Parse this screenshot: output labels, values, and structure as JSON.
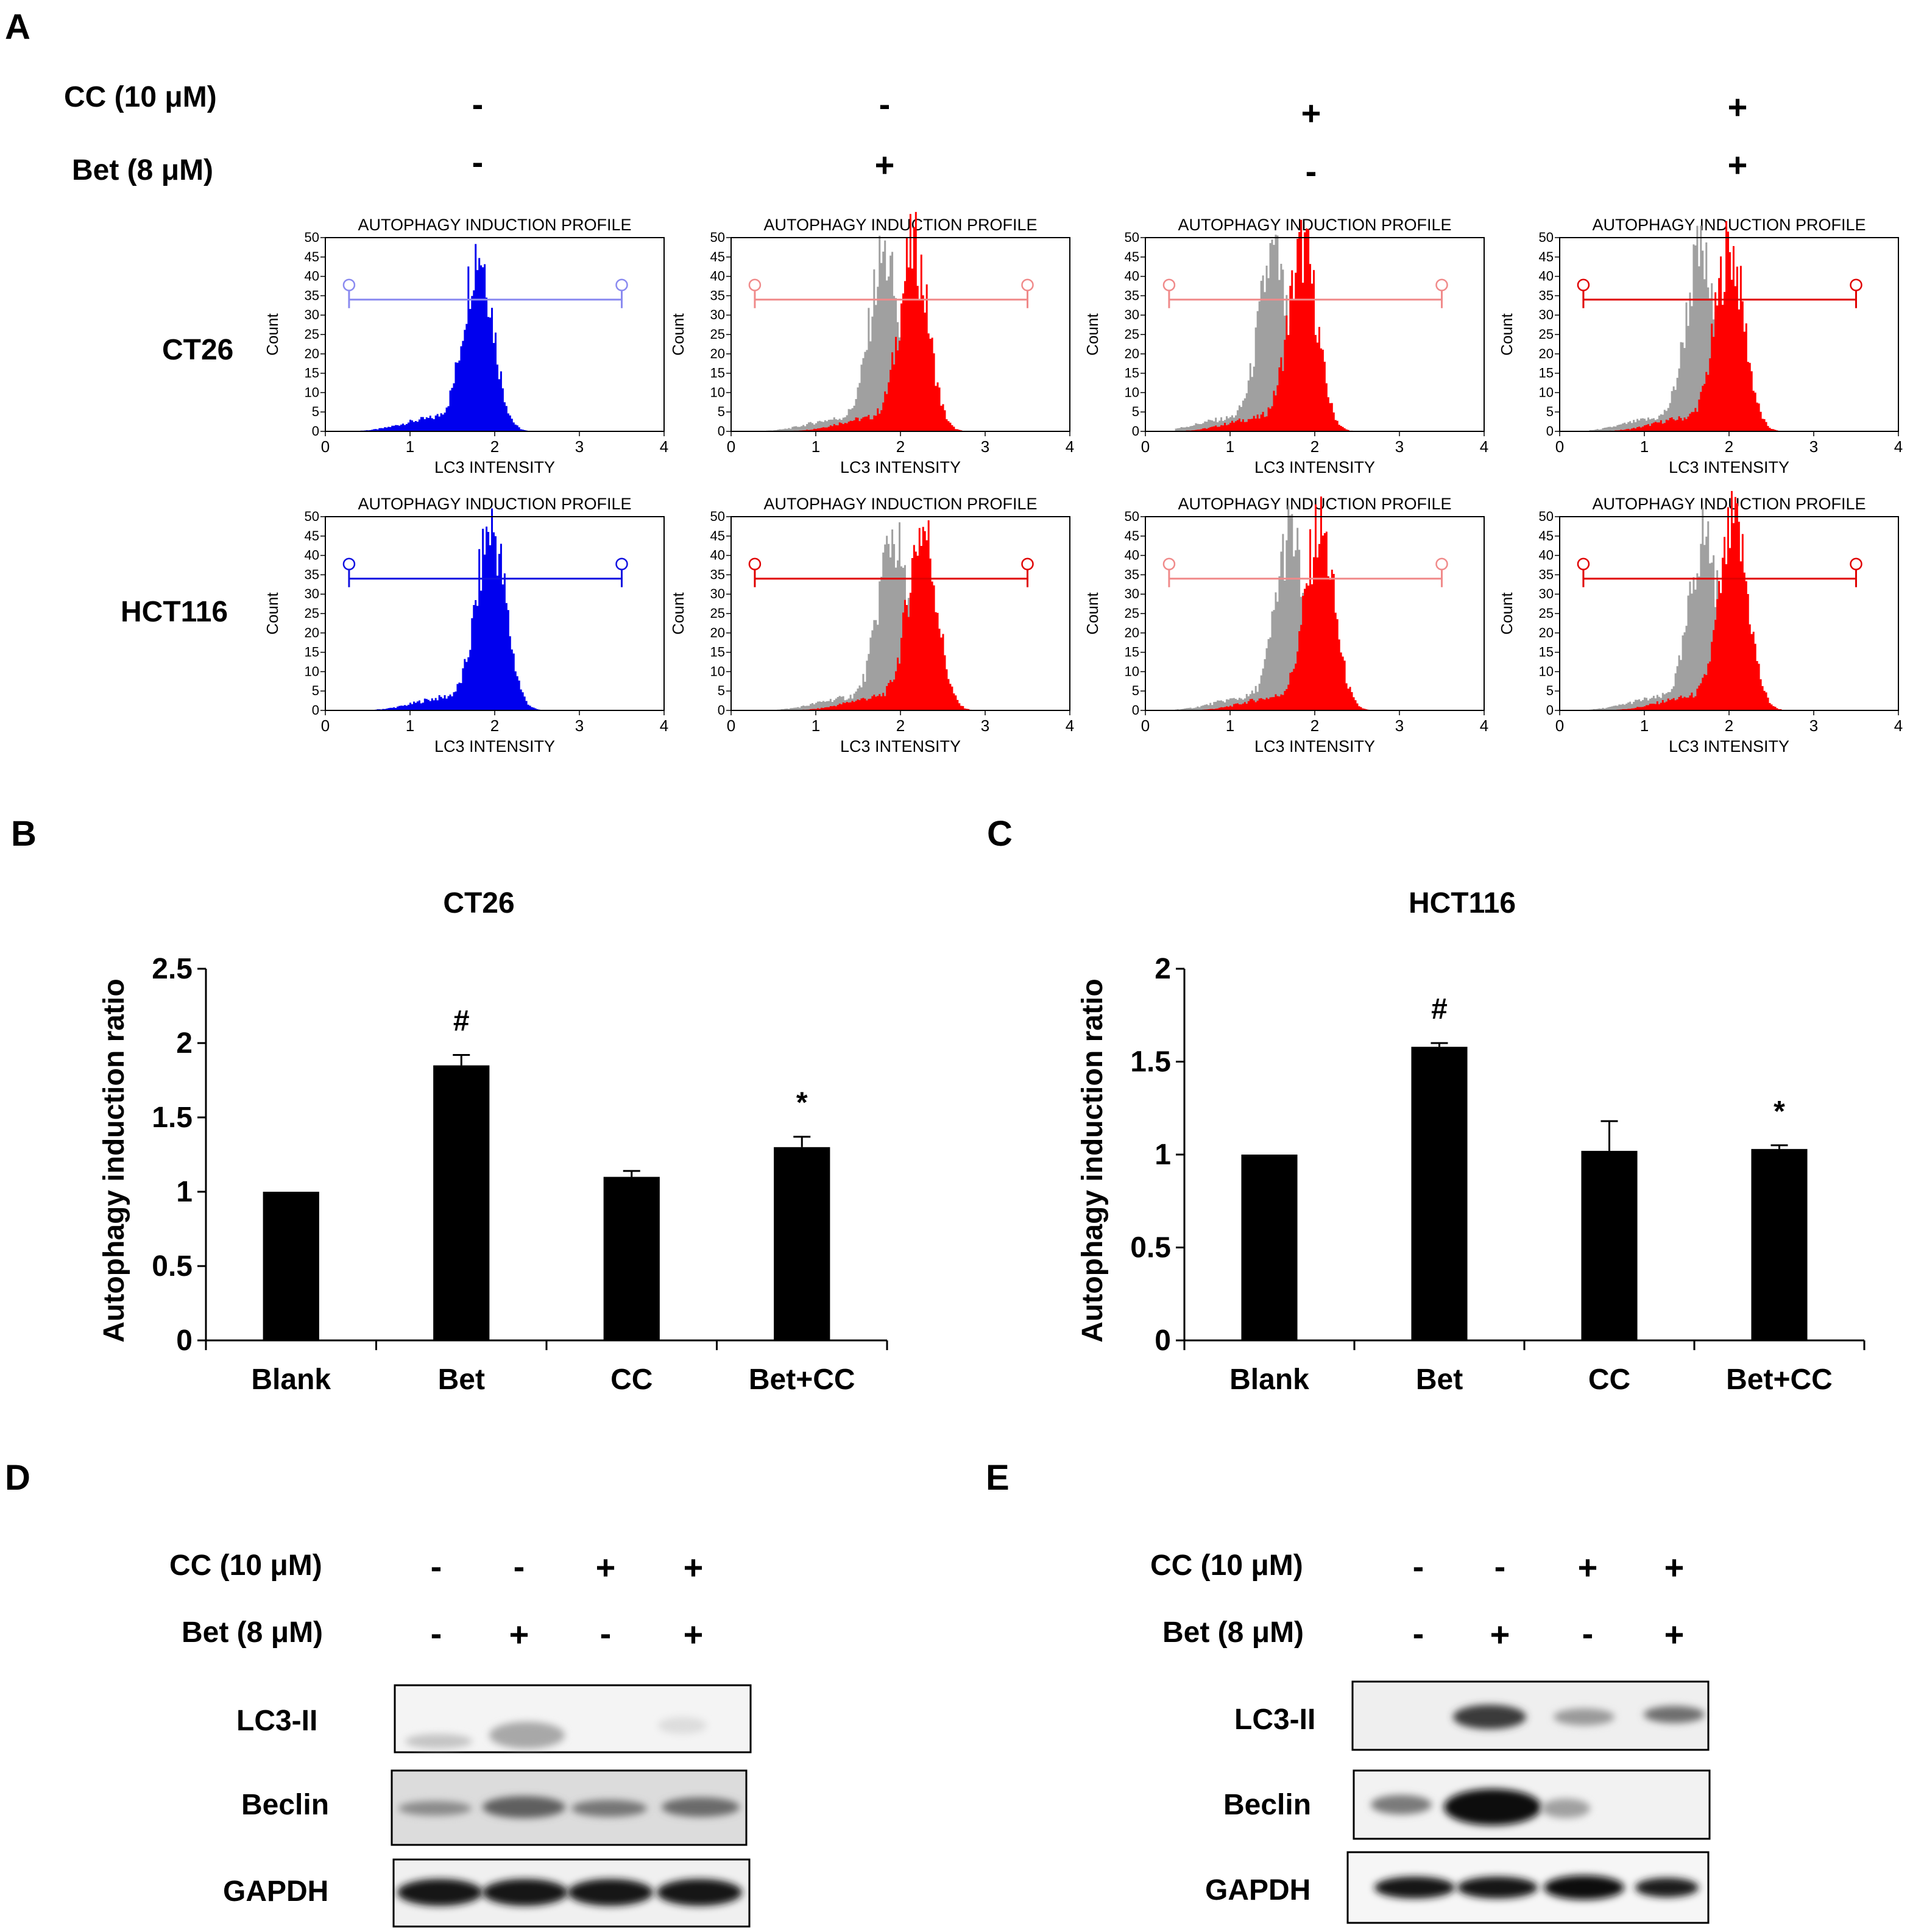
{
  "panel_labels": {
    "A": "A",
    "B": "B",
    "C": "C",
    "D": "D",
    "E": "E"
  },
  "panel_A": {
    "row_labels": [
      "CC (10 μM)",
      "Bet (8 μM)"
    ],
    "cc_signs": [
      "-",
      "-",
      "+",
      "+"
    ],
    "bet_signs": [
      "-",
      "+",
      "-",
      "+"
    ],
    "cell_lines": [
      "CT26",
      "HCT116"
    ],
    "hist_title": "AUTOPHAGY INDUCTION PROFILE",
    "hist_xlabel": "LC3 INTENSITY",
    "hist_ylabel": "Count",
    "hist_xticks": [
      "0",
      "1",
      "2",
      "3",
      "4"
    ],
    "hist_yticks": [
      "0",
      "5",
      "10",
      "15",
      "20",
      "25",
      "30",
      "35",
      "40",
      "45",
      "50"
    ],
    "colors": {
      "control": "#0000ee",
      "treated": "#ff0000",
      "overlay": "#a0a0a0"
    },
    "peak_intensity": {
      "CT26": [
        1.8,
        2.15,
        1.85,
        2.0
      ],
      "HCT116": [
        1.95,
        2.25,
        2.05,
        2.05
      ]
    }
  },
  "chart_data": [
    {
      "type": "bar",
      "title": "CT26",
      "ylabel": "Autophagy induction ratio",
      "xlabel": "",
      "categories": [
        "Blank",
        "Bet",
        "CC",
        "Bet+CC"
      ],
      "values": [
        1.0,
        1.85,
        1.1,
        1.3
      ],
      "errors": [
        0.0,
        0.07,
        0.04,
        0.07
      ],
      "annotations": [
        "",
        "#",
        "",
        "*"
      ],
      "ylim": [
        0,
        2.5
      ],
      "yticks": [
        "0",
        "0.5",
        "1",
        "1.5",
        "2",
        "2.5"
      ],
      "bar_color": "#000000"
    },
    {
      "type": "bar",
      "title": "HCT116",
      "ylabel": "Autophagy induction ratio",
      "xlabel": "",
      "categories": [
        "Blank",
        "Bet",
        "CC",
        "Bet+CC"
      ],
      "values": [
        1.0,
        1.58,
        1.02,
        1.03
      ],
      "errors": [
        0.0,
        0.02,
        0.16,
        0.02
      ],
      "annotations": [
        "",
        "#",
        "",
        "*"
      ],
      "ylim": [
        0,
        2
      ],
      "yticks": [
        "0",
        "0.5",
        "1",
        "1.5",
        "2"
      ],
      "bar_color": "#000000"
    }
  ],
  "panel_D": {
    "row_labels": [
      "CC (10 μM)",
      "Bet (8 μM)"
    ],
    "cc_signs": [
      "-",
      "-",
      "+",
      "+"
    ],
    "bet_signs": [
      "-",
      "+",
      "-",
      "+"
    ],
    "bands": [
      "LC3-II",
      "Beclin",
      "GAPDH"
    ]
  },
  "panel_E": {
    "row_labels": [
      "CC (10 μM)",
      "Bet (8 μM)"
    ],
    "cc_signs": [
      "-",
      "-",
      "+",
      "+"
    ],
    "bet_signs": [
      "-",
      "+",
      "-",
      "+"
    ],
    "bands": [
      "LC3-II",
      "Beclin",
      "GAPDH"
    ]
  }
}
